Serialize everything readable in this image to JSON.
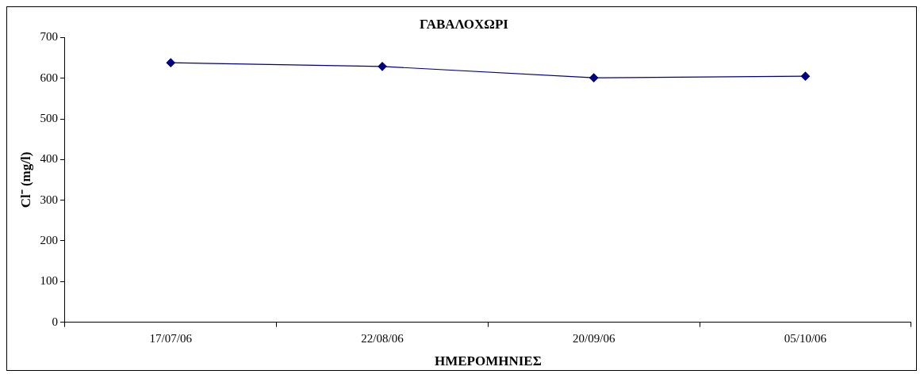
{
  "chart_data": {
    "type": "line",
    "title": "ΓΑΒΑΛΟΧΩΡΙ",
    "xlabel": "ΗΜΕΡΟΜΗΝΙΕΣ",
    "ylabel": "Cl⁻ (mg/l)",
    "categories": [
      "17/07/06",
      "22/08/06",
      "20/09/06",
      "05/10/06"
    ],
    "series": [
      {
        "color": "#000080",
        "values": [
          638,
          629,
          601,
          605
        ]
      }
    ],
    "ylim": [
      0,
      700
    ],
    "yticks": [
      0,
      100,
      200,
      300,
      400,
      500,
      600,
      700
    ],
    "grid": false,
    "marker": "diamond",
    "line_style": "solid"
  }
}
